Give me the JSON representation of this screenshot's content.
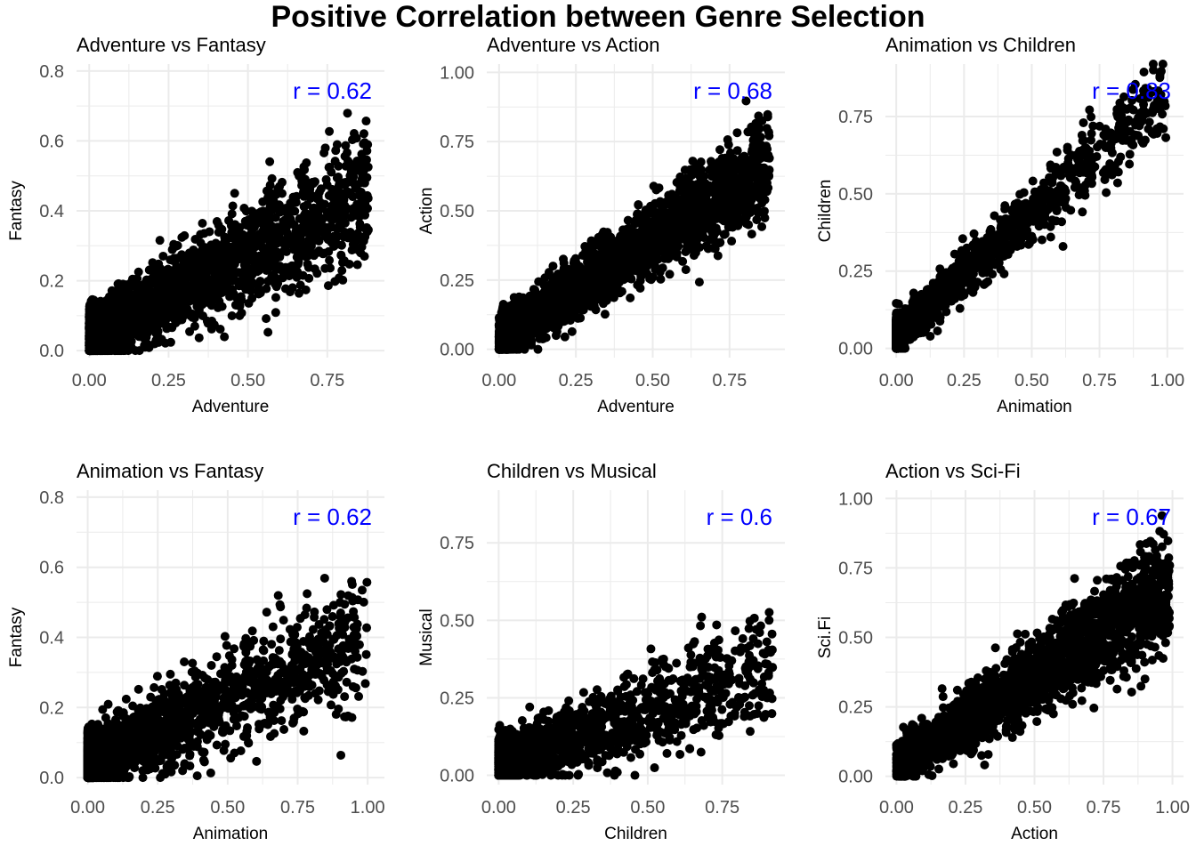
{
  "title": "Positive Correlation between Genre Selection",
  "colors": {
    "points": "#000000",
    "annotation": "#0000ff",
    "grid": "#ebebeb",
    "text": "#4d4d4d"
  },
  "chart_data": [
    {
      "type": "scatter",
      "title": "Adventure vs Fantasy",
      "xlabel": "Adventure",
      "ylabel": "Fantasy",
      "xlim": [
        -0.04,
        0.93
      ],
      "ylim": [
        -0.02,
        0.82
      ],
      "xticks": [
        0,
        0.25,
        0.5,
        0.75
      ],
      "xtick_labels": [
        "0.00",
        "0.25",
        "0.50",
        "0.75"
      ],
      "yticks": [
        0,
        0.2,
        0.4,
        0.6,
        0.8
      ],
      "ytick_labels": [
        "0.0",
        "0.2",
        "0.4",
        "0.6",
        "0.8"
      ],
      "annotation": "r = 0.62",
      "grid": true,
      "series": [
        {
          "r": 0.62,
          "n": 2200,
          "x_shape": 2.0,
          "x_max": 0.88,
          "y_scale": 0.75,
          "y_min": 0,
          "y_max": 0.78
        }
      ]
    },
    {
      "type": "scatter",
      "title": "Adventure vs Action",
      "xlabel": "Adventure",
      "ylabel": "Action",
      "xlim": [
        -0.04,
        0.93
      ],
      "ylim": [
        -0.03,
        1.03
      ],
      "xticks": [
        0,
        0.25,
        0.5,
        0.75
      ],
      "xtick_labels": [
        "0.00",
        "0.25",
        "0.50",
        "0.75"
      ],
      "yticks": [
        0,
        0.25,
        0.5,
        0.75,
        1.0
      ],
      "ytick_labels": [
        "0.00",
        "0.25",
        "0.50",
        "0.75",
        "1.00"
      ],
      "annotation": "r = 0.68",
      "grid": true,
      "series": [
        {
          "r": 0.68,
          "n": 2600,
          "x_shape": 1.6,
          "x_max": 0.88,
          "y_scale": 1.05,
          "y_min": 0,
          "y_max": 0.98
        }
      ]
    },
    {
      "type": "scatter",
      "title": "Animation vs Children",
      "xlabel": "Animation",
      "ylabel": "Children",
      "xlim": [
        -0.04,
        1.06
      ],
      "ylim": [
        -0.03,
        0.92
      ],
      "xticks": [
        0,
        0.25,
        0.5,
        0.75,
        1.0
      ],
      "xtick_labels": [
        "0.00",
        "0.25",
        "0.50",
        "0.75",
        "1.00"
      ],
      "yticks": [
        0,
        0.25,
        0.5,
        0.75
      ],
      "ytick_labels": [
        "0.00",
        "0.25",
        "0.50",
        "0.75"
      ],
      "annotation": "r = 0.83",
      "grid": true,
      "series": [
        {
          "r": 0.83,
          "n": 1800,
          "x_shape": 4.0,
          "x_max": 1.0,
          "y_scale": 0.95,
          "y_min": 0,
          "y_max": 0.92
        }
      ]
    },
    {
      "type": "scatter",
      "title": "Animation vs Fantasy",
      "xlabel": "Animation",
      "ylabel": "Fantasy",
      "xlim": [
        -0.04,
        1.06
      ],
      "ylim": [
        -0.02,
        0.82
      ],
      "xticks": [
        0,
        0.25,
        0.5,
        0.75,
        1.0
      ],
      "xtick_labels": [
        "0.00",
        "0.25",
        "0.50",
        "0.75",
        "1.00"
      ],
      "yticks": [
        0,
        0.2,
        0.4,
        0.6,
        0.8
      ],
      "ytick_labels": [
        "0.0",
        "0.2",
        "0.4",
        "0.6",
        "0.8"
      ],
      "annotation": "r = 0.62",
      "grid": true,
      "series": [
        {
          "r": 0.62,
          "n": 2000,
          "x_shape": 3.2,
          "x_max": 1.0,
          "y_scale": 0.6,
          "y_min": 0,
          "y_max": 0.78
        }
      ]
    },
    {
      "type": "scatter",
      "title": "Children vs Musical",
      "xlabel": "Children",
      "ylabel": "Musical",
      "xlim": [
        -0.04,
        0.96
      ],
      "ylim": [
        -0.03,
        0.92
      ],
      "xticks": [
        0,
        0.25,
        0.5,
        0.75
      ],
      "xtick_labels": [
        "0.00",
        "0.25",
        "0.50",
        "0.75"
      ],
      "yticks": [
        0,
        0.25,
        0.5,
        0.75
      ],
      "ytick_labels": [
        "0.00",
        "0.25",
        "0.50",
        "0.75"
      ],
      "annotation": "r = 0.6",
      "grid": true,
      "series": [
        {
          "r": 0.6,
          "n": 1700,
          "x_shape": 3.0,
          "x_max": 0.92,
          "y_scale": 0.55,
          "y_min": 0,
          "y_max": 0.88
        }
      ]
    },
    {
      "type": "scatter",
      "title": "Action vs Sci-Fi",
      "xlabel": "Action",
      "ylabel": "Sci.Fi",
      "xlim": [
        -0.04,
        1.04
      ],
      "ylim": [
        -0.03,
        1.03
      ],
      "xticks": [
        0,
        0.25,
        0.5,
        0.75,
        1.0
      ],
      "xtick_labels": [
        "0.00",
        "0.25",
        "0.50",
        "0.75",
        "1.00"
      ],
      "yticks": [
        0,
        0.25,
        0.5,
        0.75,
        1.0
      ],
      "ytick_labels": [
        "0.00",
        "0.25",
        "0.50",
        "0.75",
        "1.00"
      ],
      "annotation": "r = 0.67",
      "grid": true,
      "series": [
        {
          "r": 0.67,
          "n": 2400,
          "x_shape": 1.3,
          "x_max": 0.99,
          "y_scale": 0.95,
          "y_min": 0,
          "y_max": 0.96
        }
      ]
    }
  ]
}
